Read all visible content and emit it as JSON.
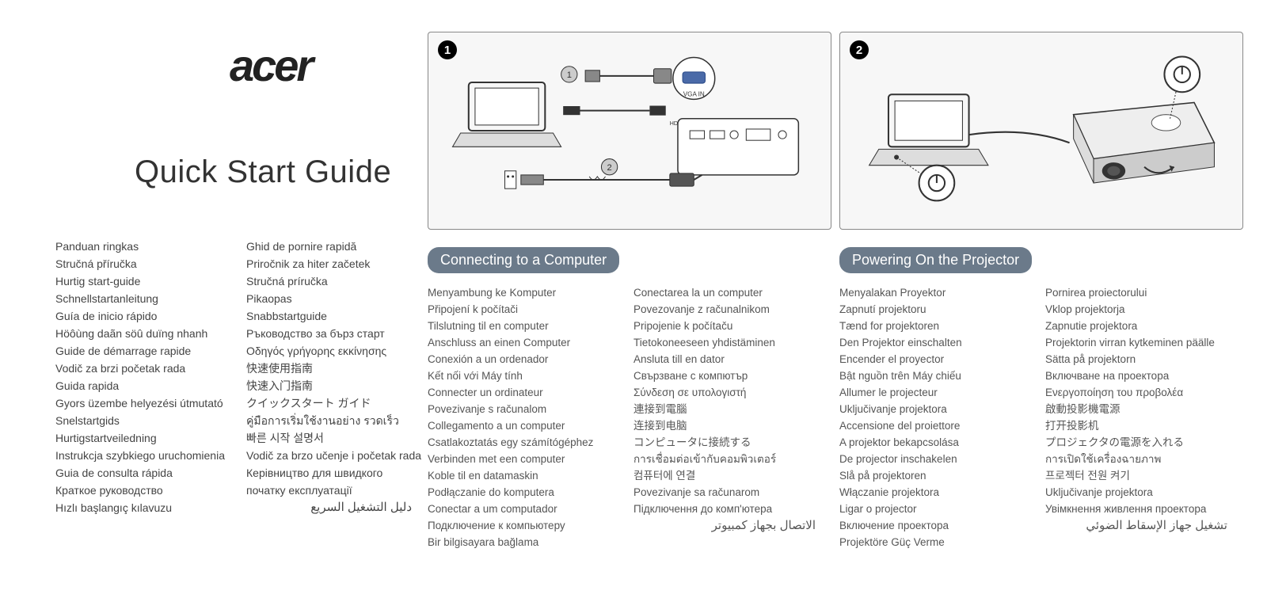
{
  "brand": "acer",
  "main_title": "Quick Start Guide",
  "figure1": {
    "num": "1",
    "vga_label": "VGA IN",
    "step1": "1",
    "step2": "2"
  },
  "figure2": {
    "num": "2"
  },
  "section1_title": "Connecting to a Computer",
  "section2_title": "Powering On the Projector",
  "guide_translations_col1": [
    "Panduan ringkas",
    "Stručná příručka",
    "Hurtig start-guide",
    "Schnellstartanleitung",
    "Guía de inicio rápido",
    "Höôùng daãn söû duïng nhanh",
    "Guide de démarrage rapide",
    "Vodič za brzi početak rada",
    "Guida rapida",
    "Gyors üzembe helyezési útmutató",
    "Snelstartgids",
    "Hurtigstartveiledning",
    "Instrukcja szybkiego uruchomienia",
    "Guia de consulta rápida",
    "Краткое руководство",
    "Hızlı başlangıç kılavuzu"
  ],
  "guide_translations_col2": [
    "Ghid de pornire rapidă",
    "Priročnik za hiter začetek",
    "Stručná príručka",
    "Pikaopas",
    "Snabbstartguide",
    "Ръководство за бърз старт",
    "Οδηγός γρήγορης εκκίνησης",
    "快速使用指南",
    "快速入门指南",
    "クイックスタート ガイド",
    "คู่มือการเริ่มใช้งานอย่าง รวดเร็ว",
    "빠른 시작 설명서",
    "Vodič za brzo učenje i početak rada",
    "Керівництво для швидкого",
    "початку експлуатації"
  ],
  "guide_arabic": "دليل التشغيل السريع",
  "connect_col1": [
    "Menyambung ke Komputer",
    "Připojení k počítači",
    "Tilslutning til en computer",
    "Anschluss an einen Computer",
    "Conexión a un ordenador",
    "Kết nối với Máy tính",
    "Connecter un ordinateur",
    "Povezivanje s računalom",
    "Collegamento a un computer",
    "Csatlakoztatás egy számítógéphez",
    "Verbinden met een computer",
    "Koble til en datamaskin",
    "Podłączanie do komputera",
    "Conectar a um computador",
    "Подключение к компьютеру",
    "Bir bilgisayara bağlama"
  ],
  "connect_col2": [
    "Conectarea la un computer",
    "Povezovanje z računalnikom",
    "Pripojenie k počítaču",
    "Tietokoneeseen yhdistäminen",
    "Ansluta till en dator",
    "Свързване с компютър",
    "Σύνδεση σε υπολογιστή",
    "連接到電腦",
    "连接到电脑",
    "コンピュータに接続する",
    "การเชื่อมต่อเข้ากับคอมพิวเตอร์",
    "컴퓨터에 연결",
    "Povezivanje sa računarom",
    "Підключення до комп'ютера"
  ],
  "connect_arabic": "الاتصال بجهاز كمبيوتر",
  "power_col1": [
    "Menyalakan Proyektor",
    "Zapnutí projektoru",
    "Tænd for projektoren",
    "Den Projektor einschalten",
    "Encender el proyector",
    "Bật nguồn trên Máy chiếu",
    "Allumer le projecteur",
    "Uključivanje projektora",
    "Accensione del proiettore",
    "A projektor bekapcsolása",
    "De projector inschakelen",
    "Slå på projektoren",
    "Włączanie projektora",
    "Ligar o projector",
    "Включение проектора",
    "Projektöre Güç Verme"
  ],
  "power_col2": [
    "Pornirea proiectorului",
    "Vklop projektorja",
    "Zapnutie projektora",
    "Projektorin virran kytkeminen päälle",
    "Sätta på projektorn",
    "Включване на проектора",
    "Ενεργοποίηση του προβολέα",
    "啟動投影機電源",
    "打开投影机",
    "プロジェクタの電源を入れる",
    "การเปิดใช้เครื่องฉายภาพ",
    "프로젝터 전원 켜기",
    "Uključivanje projektora",
    "Увімкнення живлення проектора"
  ],
  "power_arabic": "تشغيل جهاز الإسقاط الضوئي",
  "colors": {
    "section_bg": "#6b7a8a",
    "text": "#444444",
    "border": "#888888"
  }
}
